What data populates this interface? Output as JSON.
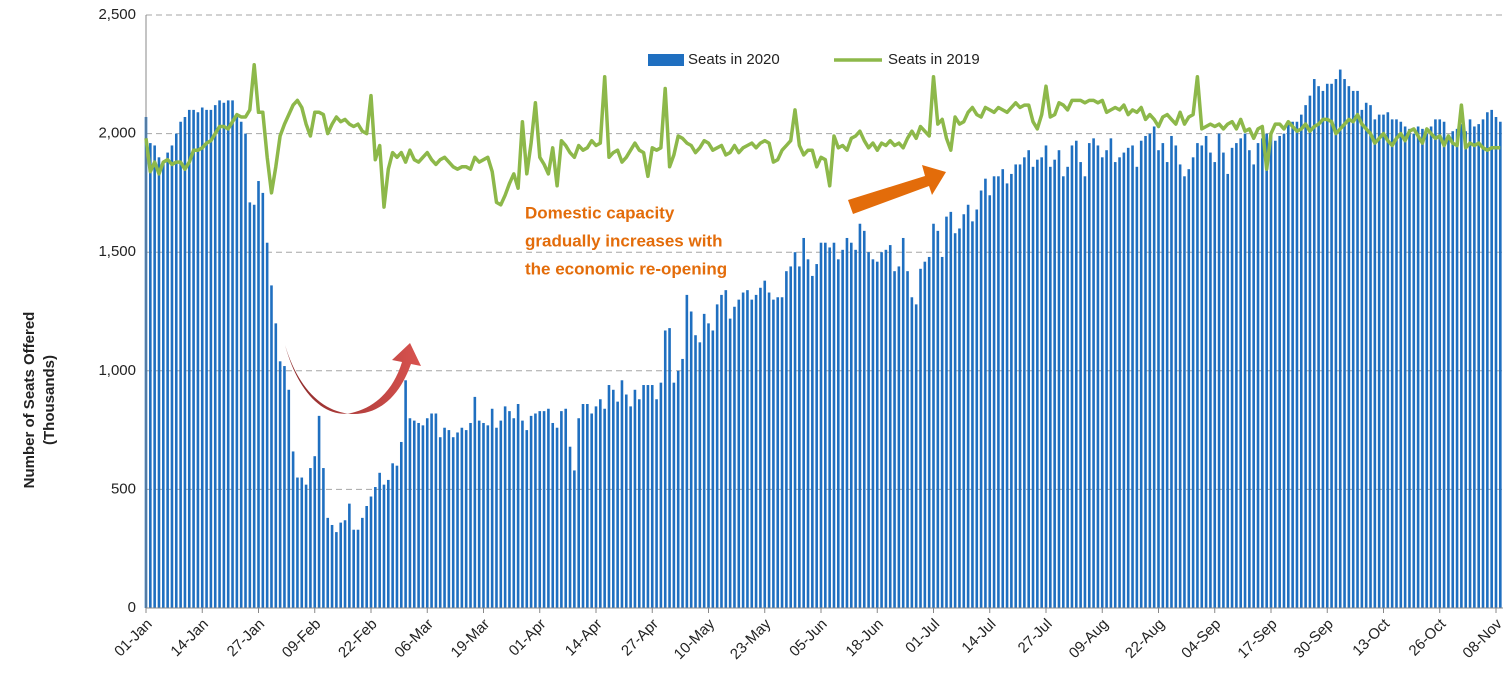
{
  "chart_data": {
    "type": "bar_line",
    "y_label": [
      "Number of Seats Offered",
      "(Thousands)"
    ],
    "annotation": [
      "Domestic capacity",
      "gradually increases with",
      "the economic re-opening"
    ],
    "legend": "top",
    "grid": true,
    "ylim": [
      0,
      2500
    ],
    "yticks": [
      0,
      500,
      {
        "value": 1000,
        "label": "1,000"
      },
      {
        "value": 1500,
        "label": "1,500"
      },
      {
        "value": 2000,
        "label": "2,000"
      },
      {
        "value": 2500,
        "label": "2,500"
      }
    ],
    "categories": [
      "01-Jan",
      null,
      null,
      null,
      null,
      null,
      null,
      null,
      null,
      null,
      null,
      null,
      null,
      "14-Jan",
      null,
      null,
      null,
      null,
      null,
      null,
      null,
      null,
      null,
      null,
      null,
      null,
      "27-Jan",
      null,
      null,
      null,
      null,
      null,
      null,
      null,
      null,
      null,
      null,
      null,
      null,
      "09-Feb",
      null,
      null,
      null,
      null,
      null,
      null,
      null,
      null,
      null,
      null,
      null,
      null,
      "22-Feb",
      null,
      null,
      null,
      null,
      null,
      null,
      null,
      null,
      null,
      null,
      null,
      null,
      "06-Mar",
      null,
      null,
      null,
      null,
      null,
      null,
      null,
      null,
      null,
      null,
      null,
      null,
      "19-Mar",
      null,
      null,
      null,
      null,
      null,
      null,
      null,
      null,
      null,
      null,
      null,
      null,
      "01-Apr",
      null,
      null,
      null,
      null,
      null,
      null,
      null,
      null,
      null,
      null,
      null,
      null,
      "14-Apr",
      null,
      null,
      null,
      null,
      null,
      null,
      null,
      null,
      null,
      null,
      null,
      null,
      "27-Apr",
      null,
      null,
      null,
      null,
      null,
      null,
      null,
      null,
      null,
      null,
      null,
      null,
      "10-May",
      null,
      null,
      null,
      null,
      null,
      null,
      null,
      null,
      null,
      null,
      null,
      null,
      "23-May",
      null,
      null,
      null,
      null,
      null,
      null,
      null,
      null,
      null,
      null,
      null,
      null,
      "05-Jun",
      null,
      null,
      null,
      null,
      null,
      null,
      null,
      null,
      null,
      null,
      null,
      null,
      "18-Jun",
      null,
      null,
      null,
      null,
      null,
      null,
      null,
      null,
      null,
      null,
      null,
      null,
      "01-Jul",
      null,
      null,
      null,
      null,
      null,
      null,
      null,
      null,
      null,
      null,
      null,
      null,
      "14-Jul",
      null,
      null,
      null,
      null,
      null,
      null,
      null,
      null,
      null,
      null,
      null,
      null,
      "27-Jul",
      null,
      null,
      null,
      null,
      null,
      null,
      null,
      null,
      null,
      null,
      null,
      null,
      "09-Aug",
      null,
      null,
      null,
      null,
      null,
      null,
      null,
      null,
      null,
      null,
      null,
      null,
      "22-Aug",
      null,
      null,
      null,
      null,
      null,
      null,
      null,
      null,
      null,
      null,
      null,
      null,
      "04-Sep",
      null,
      null,
      null,
      null,
      null,
      null,
      null,
      null,
      null,
      null,
      null,
      null,
      "17-Sep",
      null,
      null,
      null,
      null,
      null,
      null,
      null,
      null,
      null,
      null,
      null,
      null,
      "30-Sep",
      null,
      null,
      null,
      null,
      null,
      null,
      null,
      null,
      null,
      null,
      null,
      null,
      "13-Oct",
      null,
      null,
      null,
      null,
      null,
      null,
      null,
      null,
      null,
      null,
      null,
      null,
      "26-Oct",
      null,
      null,
      null,
      null,
      null,
      null,
      null,
      null,
      null,
      null,
      null,
      null,
      "08-Nov",
      null
    ],
    "series": [
      {
        "name": "Seats in 2020",
        "type": "bar",
        "color": "#1f6fc0",
        "values": [
          2070,
          1960,
          1950,
          1900,
          1880,
          1920,
          1950,
          2000,
          2050,
          2070,
          2100,
          2100,
          2090,
          2110,
          2100,
          2100,
          2120,
          2140,
          2130,
          2140,
          2140,
          2080,
          2050,
          2000,
          1710,
          1700,
          1800,
          1750,
          1540,
          1360,
          1200,
          1040,
          1020,
          920,
          660,
          550,
          550,
          520,
          590,
          640,
          810,
          590,
          380,
          350,
          320,
          360,
          370,
          440,
          330,
          330,
          380,
          430,
          470,
          510,
          570,
          520,
          540,
          610,
          600,
          700,
          960,
          800,
          790,
          780,
          770,
          800,
          820,
          820,
          720,
          760,
          750,
          720,
          740,
          760,
          750,
          780,
          890,
          790,
          780,
          770,
          840,
          760,
          790,
          850,
          830,
          800,
          860,
          790,
          750,
          810,
          820,
          830,
          830,
          840,
          780,
          760,
          830,
          840,
          680,
          580,
          800,
          860,
          860,
          820,
          850,
          880,
          840,
          940,
          920,
          870,
          960,
          900,
          850,
          920,
          880,
          940,
          940,
          940,
          880,
          950,
          1170,
          1180,
          950,
          1000,
          1050,
          1320,
          1250,
          1150,
          1120,
          1240,
          1200,
          1170,
          1280,
          1320,
          1340,
          1220,
          1270,
          1300,
          1330,
          1340,
          1300,
          1320,
          1350,
          1380,
          1330,
          1300,
          1310,
          1310,
          1420,
          1440,
          1500,
          1440,
          1560,
          1470,
          1400,
          1450,
          1540,
          1540,
          1520,
          1540,
          1470,
          1510,
          1560,
          1540,
          1510,
          1620,
          1590,
          1500,
          1470,
          1460,
          1500,
          1510,
          1530,
          1420,
          1440,
          1560,
          1420,
          1310,
          1280,
          1430,
          1460,
          1480,
          1620,
          1590,
          1480,
          1650,
          1670,
          1580,
          1600,
          1660,
          1700,
          1630,
          1680,
          1760,
          1810,
          1740,
          1820,
          1820,
          1850,
          1790,
          1830,
          1870,
          1870,
          1900,
          1930,
          1860,
          1890,
          1900,
          1950,
          1860,
          1890,
          1930,
          1820,
          1860,
          1950,
          1970,
          1880,
          1820,
          1960,
          1980,
          1950,
          1900,
          1930,
          1980,
          1880,
          1900,
          1920,
          1940,
          1950,
          1860,
          1970,
          1990,
          2000,
          2030,
          1930,
          1960,
          1880,
          1990,
          1950,
          1870,
          1820,
          1850,
          1900,
          1960,
          1950,
          1990,
          1920,
          1880,
          2000,
          1920,
          1830,
          1940,
          1960,
          1980,
          2000,
          1930,
          1870,
          1960,
          1980,
          2000,
          1990,
          1970,
          1990,
          2000,
          2050,
          2050,
          2050,
          2080,
          2120,
          2160,
          2230,
          2200,
          2180,
          2210,
          2210,
          2230,
          2270,
          2230,
          2200,
          2180,
          2180,
          2100,
          2130,
          2120,
          2060,
          2080,
          2080,
          2090,
          2060,
          2060,
          2050,
          2030,
          2020,
          2000,
          2030,
          2020,
          2000,
          2030,
          2060,
          2060,
          2050,
          1990,
          2010,
          2020,
          2040,
          2010,
          2060,
          2030,
          2040,
          2060,
          2090,
          2100,
          2070,
          2050
        ]
      },
      {
        "name": "Seats in 2019",
        "type": "line",
        "color": "#8db84a",
        "values": [
          1980,
          1840,
          1880,
          1830,
          1880,
          1890,
          1870,
          1880,
          1880,
          1850,
          1880,
          1930,
          1930,
          1940,
          1960,
          1970,
          2000,
          2030,
          2030,
          2020,
          2050,
          2080,
          2070,
          2070,
          2100,
          2290,
          2090,
          2090,
          1900,
          1750,
          1860,
          1990,
          2040,
          2080,
          2120,
          2140,
          2110,
          2040,
          1990,
          2090,
          2090,
          2080,
          2000,
          2040,
          2070,
          2050,
          2060,
          2040,
          2030,
          2040,
          2010,
          2000,
          2160,
          1890,
          1950,
          1690,
          1850,
          1920,
          1900,
          1920,
          1880,
          1930,
          1890,
          1880,
          1900,
          1920,
          1890,
          1870,
          1890,
          1900,
          1880,
          1860,
          1850,
          1860,
          1860,
          1850,
          1900,
          1880,
          1890,
          1900,
          1840,
          1710,
          1700,
          1740,
          1790,
          1830,
          1770,
          2050,
          1830,
          1960,
          2130,
          1900,
          1870,
          1830,
          1940,
          1780,
          1970,
          1950,
          1920,
          1900,
          1950,
          1930,
          1940,
          1970,
          1950,
          1960,
          2240,
          1900,
          1920,
          1930,
          1880,
          1900,
          1930,
          1960,
          1930,
          1920,
          1820,
          1940,
          1930,
          1940,
          2190,
          1860,
          1910,
          1990,
          1980,
          1960,
          1950,
          1920,
          1940,
          1970,
          1960,
          1930,
          1940,
          1950,
          1910,
          1920,
          1950,
          1920,
          1940,
          1950,
          1960,
          1940,
          1960,
          1970,
          1960,
          1880,
          1890,
          1930,
          1950,
          1970,
          2100,
          1950,
          1910,
          1930,
          1930,
          1860,
          1900,
          1890,
          1780,
          1990,
          1940,
          1950,
          1930,
          1980,
          1990,
          2010,
          1970,
          1940,
          1960,
          1930,
          1960,
          1950,
          1970,
          1950,
          1960,
          1940,
          1980,
          2010,
          1980,
          2030,
          2010,
          1990,
          2240,
          2040,
          2060,
          1980,
          1930,
          2070,
          2040,
          2050,
          2090,
          2110,
          2080,
          2070,
          2110,
          2100,
          2090,
          2110,
          2100,
          2090,
          2110,
          2130,
          2110,
          2120,
          2120,
          2050,
          2020,
          2080,
          2200,
          2070,
          2080,
          2130,
          2120,
          2100,
          2140,
          2140,
          2140,
          2130,
          2140,
          2140,
          2130,
          2140,
          2090,
          2100,
          2110,
          2100,
          2120,
          2080,
          2100,
          2090,
          2110,
          2060,
          2080,
          2060,
          2030,
          2070,
          2080,
          2060,
          2040,
          2090,
          2040,
          2070,
          2080,
          2240,
          2020,
          2030,
          2040,
          2030,
          2040,
          2020,
          2040,
          2050,
          2020,
          2060,
          2010,
          2020,
          1980,
          2020,
          2030,
          1850,
          2000,
          2040,
          2040,
          2020,
          2050,
          2030,
          2010,
          2020,
          2040,
          2010,
          2030,
          2040,
          2060,
          2060,
          2050,
          2000,
          2020,
          2040,
          2060,
          2050,
          2080,
          2040,
          2020,
          2000,
          1960,
          1980,
          2000,
          1970,
          1950,
          1980,
          2000,
          1970,
          2010,
          2020,
          1990,
          1960,
          2020,
          2000,
          1980,
          1990,
          1950,
          1990,
          1960,
          1950,
          2120,
          1940,
          1960,
          1950,
          1960,
          1940,
          1930,
          1940,
          1940,
          1940
        ]
      }
    ]
  }
}
